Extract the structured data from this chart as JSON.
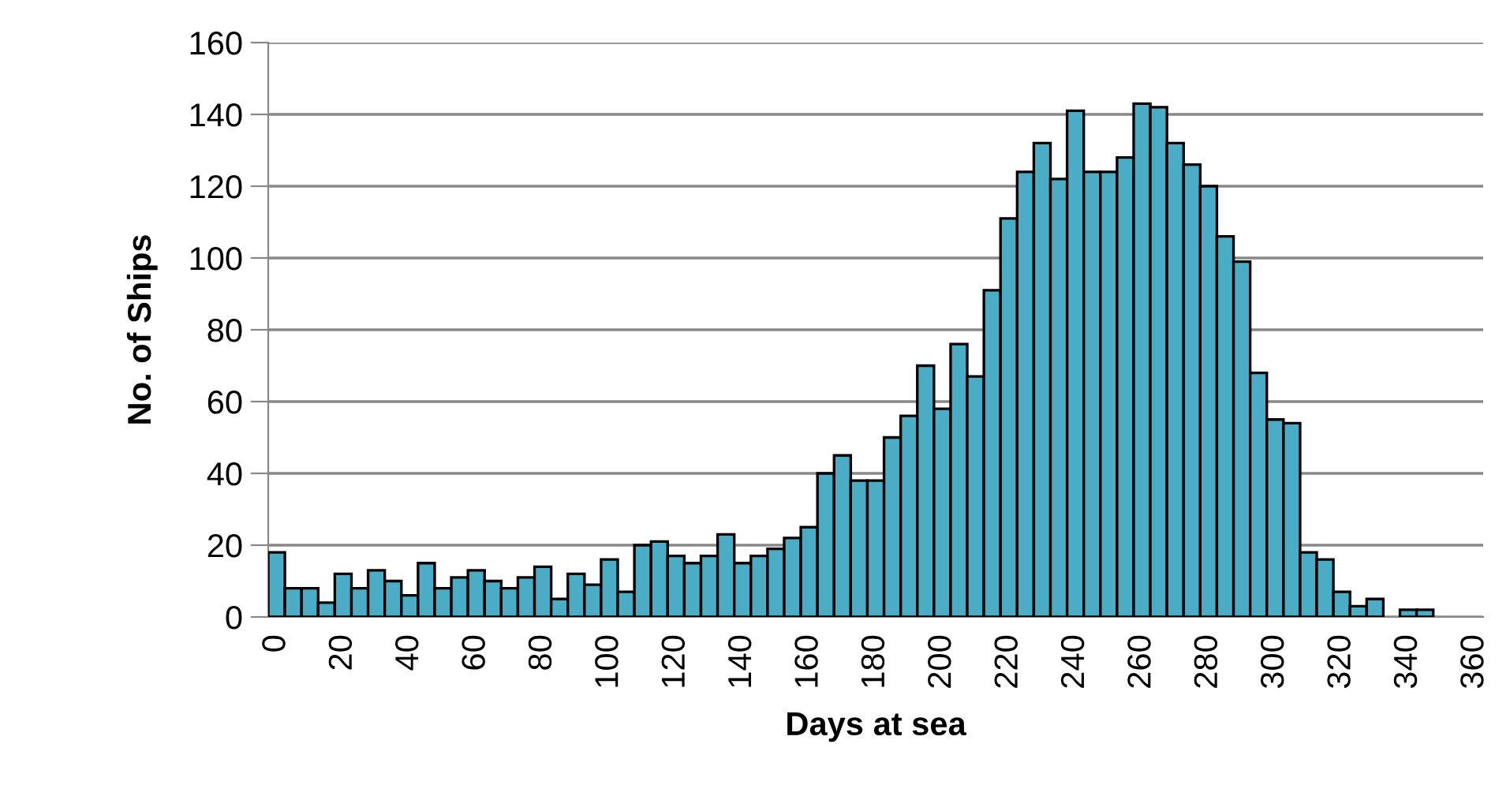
{
  "chart_data": {
    "type": "bar",
    "xlabel": "Days at sea",
    "ylabel": "No. of Ships",
    "categories": [
      "0",
      null,
      null,
      null,
      "20",
      null,
      null,
      null,
      "40",
      null,
      null,
      null,
      "60",
      null,
      null,
      null,
      "80",
      null,
      null,
      null,
      "100",
      null,
      null,
      null,
      "120",
      null,
      null,
      null,
      "140",
      null,
      null,
      null,
      "160",
      null,
      null,
      null,
      "180",
      null,
      null,
      null,
      "200",
      null,
      null,
      null,
      "220",
      null,
      null,
      null,
      "240",
      null,
      null,
      null,
      "260",
      null,
      null,
      null,
      "280",
      null,
      null,
      null,
      "300",
      null,
      null,
      null,
      "320",
      null,
      null,
      null,
      "340",
      null,
      null,
      null,
      "360"
    ],
    "values": [
      18,
      8,
      8,
      4,
      12,
      8,
      13,
      10,
      6,
      15,
      8,
      11,
      13,
      10,
      8,
      11,
      14,
      5,
      12,
      9,
      16,
      7,
      20,
      21,
      17,
      15,
      17,
      23,
      15,
      17,
      19,
      22,
      25,
      40,
      45,
      38,
      38,
      50,
      56,
      70,
      58,
      76,
      67,
      91,
      111,
      124,
      132,
      122,
      141,
      124,
      124,
      128,
      143,
      142,
      132,
      126,
      120,
      106,
      99,
      68,
      55,
      54,
      18,
      16,
      7,
      3,
      5,
      0,
      2,
      2,
      0,
      0,
      0
    ],
    "color": "#4bacc6",
    "ylim": [
      0,
      160
    ],
    "yticks": [
      0,
      20,
      40,
      60,
      80,
      100,
      120,
      140,
      160
    ],
    "grid": "y"
  }
}
